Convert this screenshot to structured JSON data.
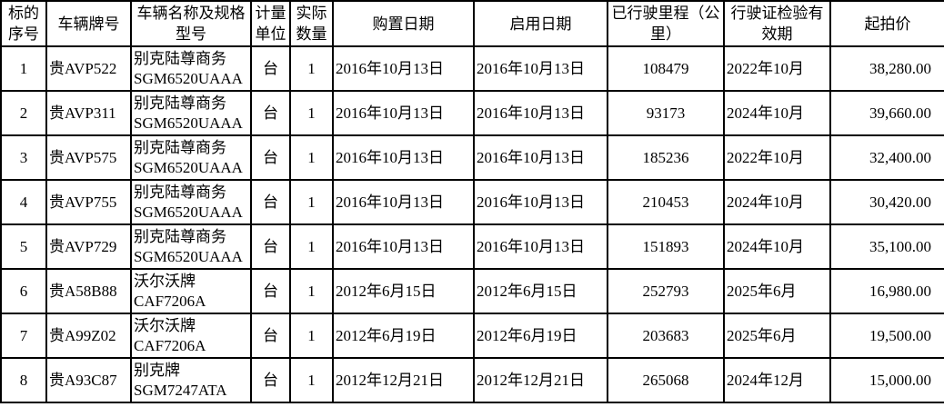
{
  "headers": [
    "标的序号",
    "车辆牌号",
    "车辆名称及规格型号",
    "计量单位",
    "实际数量",
    "购置日期",
    "启用日期",
    "已行驶里程（公里）",
    "行驶证检验有效期",
    "起拍价"
  ],
  "rows": [
    {
      "no": "1",
      "plate": "贵AVP522",
      "name": "别克陆尊商务",
      "model": "SGM6520UAAA",
      "unit": "台",
      "qty": "1",
      "purchase": "2016年10月13日",
      "start": "2016年10月13日",
      "mileage": "108479",
      "license": "2022年10月",
      "price": "38,280.00"
    },
    {
      "no": "2",
      "plate": "贵AVP311",
      "name": "别克陆尊商务",
      "model": "SGM6520UAAA",
      "unit": "台",
      "qty": "1",
      "purchase": "2016年10月13日",
      "start": "2016年10月13日",
      "mileage": "93173",
      "license": "2024年10月",
      "price": "39,660.00"
    },
    {
      "no": "3",
      "plate": "贵AVP575",
      "name": "别克陆尊商务",
      "model": "SGM6520UAAA",
      "unit": "台",
      "qty": "1",
      "purchase": "2016年10月13日",
      "start": "2016年10月13日",
      "mileage": "185236",
      "license": "2022年10月",
      "price": "32,400.00"
    },
    {
      "no": "4",
      "plate": "贵AVP755",
      "name": "别克陆尊商务",
      "model": "SGM6520UAAA",
      "unit": "台",
      "qty": "1",
      "purchase": "2016年10月13日",
      "start": "2016年10月13日",
      "mileage": "210453",
      "license": "2024年10月",
      "price": "30,420.00"
    },
    {
      "no": "5",
      "plate": "贵AVP729",
      "name": "别克陆尊商务",
      "model": "SGM6520UAAA",
      "unit": "台",
      "qty": "1",
      "purchase": "2016年10月13日",
      "start": "2016年10月13日",
      "mileage": "151893",
      "license": "2024年10月",
      "price": "35,100.00"
    },
    {
      "no": "6",
      "plate": "贵A58B88",
      "name": "沃尔沃牌",
      "model": "CAF7206A",
      "unit": "台",
      "qty": "1",
      "purchase": "2012年6月15日",
      "start": "2012年6月15日",
      "mileage": "252793",
      "license": "2025年6月",
      "price": "16,980.00"
    },
    {
      "no": "7",
      "plate": "贵A99Z02",
      "name": "沃尔沃牌",
      "model": "CAF7206A",
      "unit": "台",
      "qty": "1",
      "purchase": "2012年6月19日",
      "start": "2012年6月19日",
      "mileage": "203683",
      "license": "2025年6月",
      "price": "19,500.00"
    },
    {
      "no": "8",
      "plate": "贵A93C87",
      "name": "别克牌",
      "model": "SGM7247ATA",
      "unit": "台",
      "qty": "1",
      "purchase": "2012年12月21日",
      "start": "2012年12月21日",
      "mileage": "265068",
      "license": "2024年12月",
      "price": "15,000.00"
    }
  ]
}
